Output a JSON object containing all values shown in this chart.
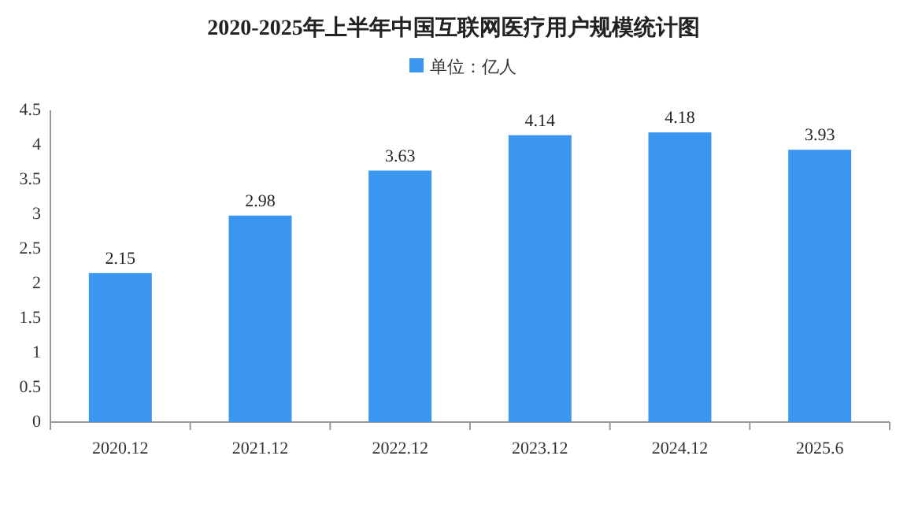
{
  "chart_data": {
    "type": "bar",
    "title": "2020-2025年上半年中国互联网医疗用户规模统计图",
    "categories": [
      "2020.12",
      "2021.12",
      "2022.12",
      "2023.12",
      "2024.12",
      "2025.6"
    ],
    "series": [
      {
        "name": "单位：亿人",
        "color": "#3a96ee",
        "values": [
          2.15,
          2.98,
          3.63,
          4.14,
          4.18,
          3.93
        ]
      }
    ],
    "ylim": [
      0,
      4.5
    ],
    "yticks": [
      0,
      0.5,
      1,
      1.5,
      2,
      2.5,
      3,
      3.5,
      4,
      4.5
    ],
    "data_labels": true,
    "legend": "top",
    "grid": false
  }
}
